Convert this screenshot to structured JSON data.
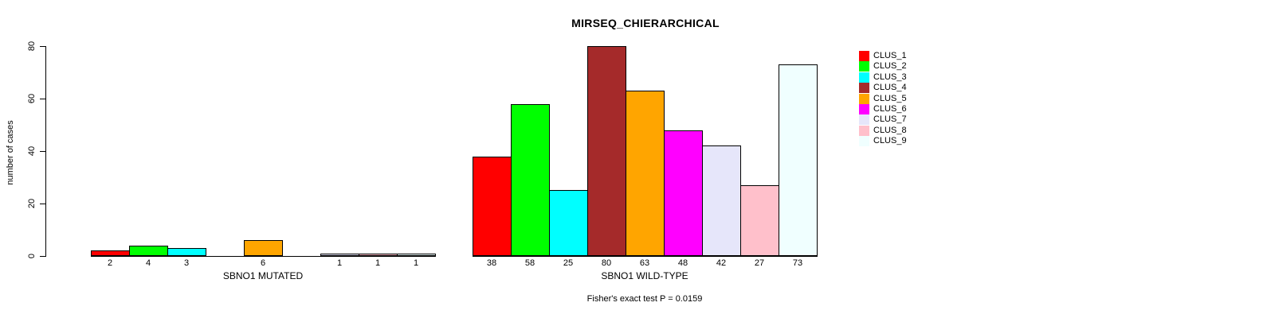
{
  "title": "MIRSEQ_CHIERARCHICAL",
  "y_axis": {
    "label": "number of cases",
    "ticks": [
      0,
      20,
      40,
      60,
      80
    ]
  },
  "annotation": "Fisher's exact test P = 0.0159",
  "legend": {
    "items": [
      {
        "label": "CLUS_1",
        "color": "#FF0000"
      },
      {
        "label": "CLUS_2",
        "color": "#00FF00"
      },
      {
        "label": "CLUS_3",
        "color": "#00FFFF"
      },
      {
        "label": "CLUS_4",
        "color": "#A52A2A"
      },
      {
        "label": "CLUS_5",
        "color": "#FFA500"
      },
      {
        "label": "CLUS_6",
        "color": "#FF00FF"
      },
      {
        "label": "CLUS_7",
        "color": "#E6E6FA"
      },
      {
        "label": "CLUS_8",
        "color": "#FFC0CB"
      },
      {
        "label": "CLUS_9",
        "color": "#F0FFFF"
      }
    ]
  },
  "chart_data": {
    "type": "bar",
    "title": "MIRSEQ_CHIERARCHICAL",
    "ylabel": "number of cases",
    "ylim": [
      0,
      80
    ],
    "yticks": [
      0,
      20,
      40,
      60,
      80
    ],
    "grid": false,
    "legend_position": "right",
    "categories": [
      "CLUS_1",
      "CLUS_2",
      "CLUS_3",
      "CLUS_4",
      "CLUS_5",
      "CLUS_6",
      "CLUS_7",
      "CLUS_8",
      "CLUS_9"
    ],
    "colors": [
      "#FF0000",
      "#00FF00",
      "#00FFFF",
      "#A52A2A",
      "#FFA500",
      "#FF00FF",
      "#E6E6FA",
      "#FFC0CB",
      "#F0FFFF"
    ],
    "groups": [
      {
        "label": "SBNO1 MUTATED",
        "values": [
          2,
          4,
          3,
          0,
          6,
          0,
          1,
          1,
          1
        ]
      },
      {
        "label": "SBNO1 WILD-TYPE",
        "values": [
          38,
          58,
          25,
          80,
          63,
          48,
          42,
          27,
          73
        ]
      }
    ],
    "annotation": "Fisher's exact test P = 0.0159"
  }
}
